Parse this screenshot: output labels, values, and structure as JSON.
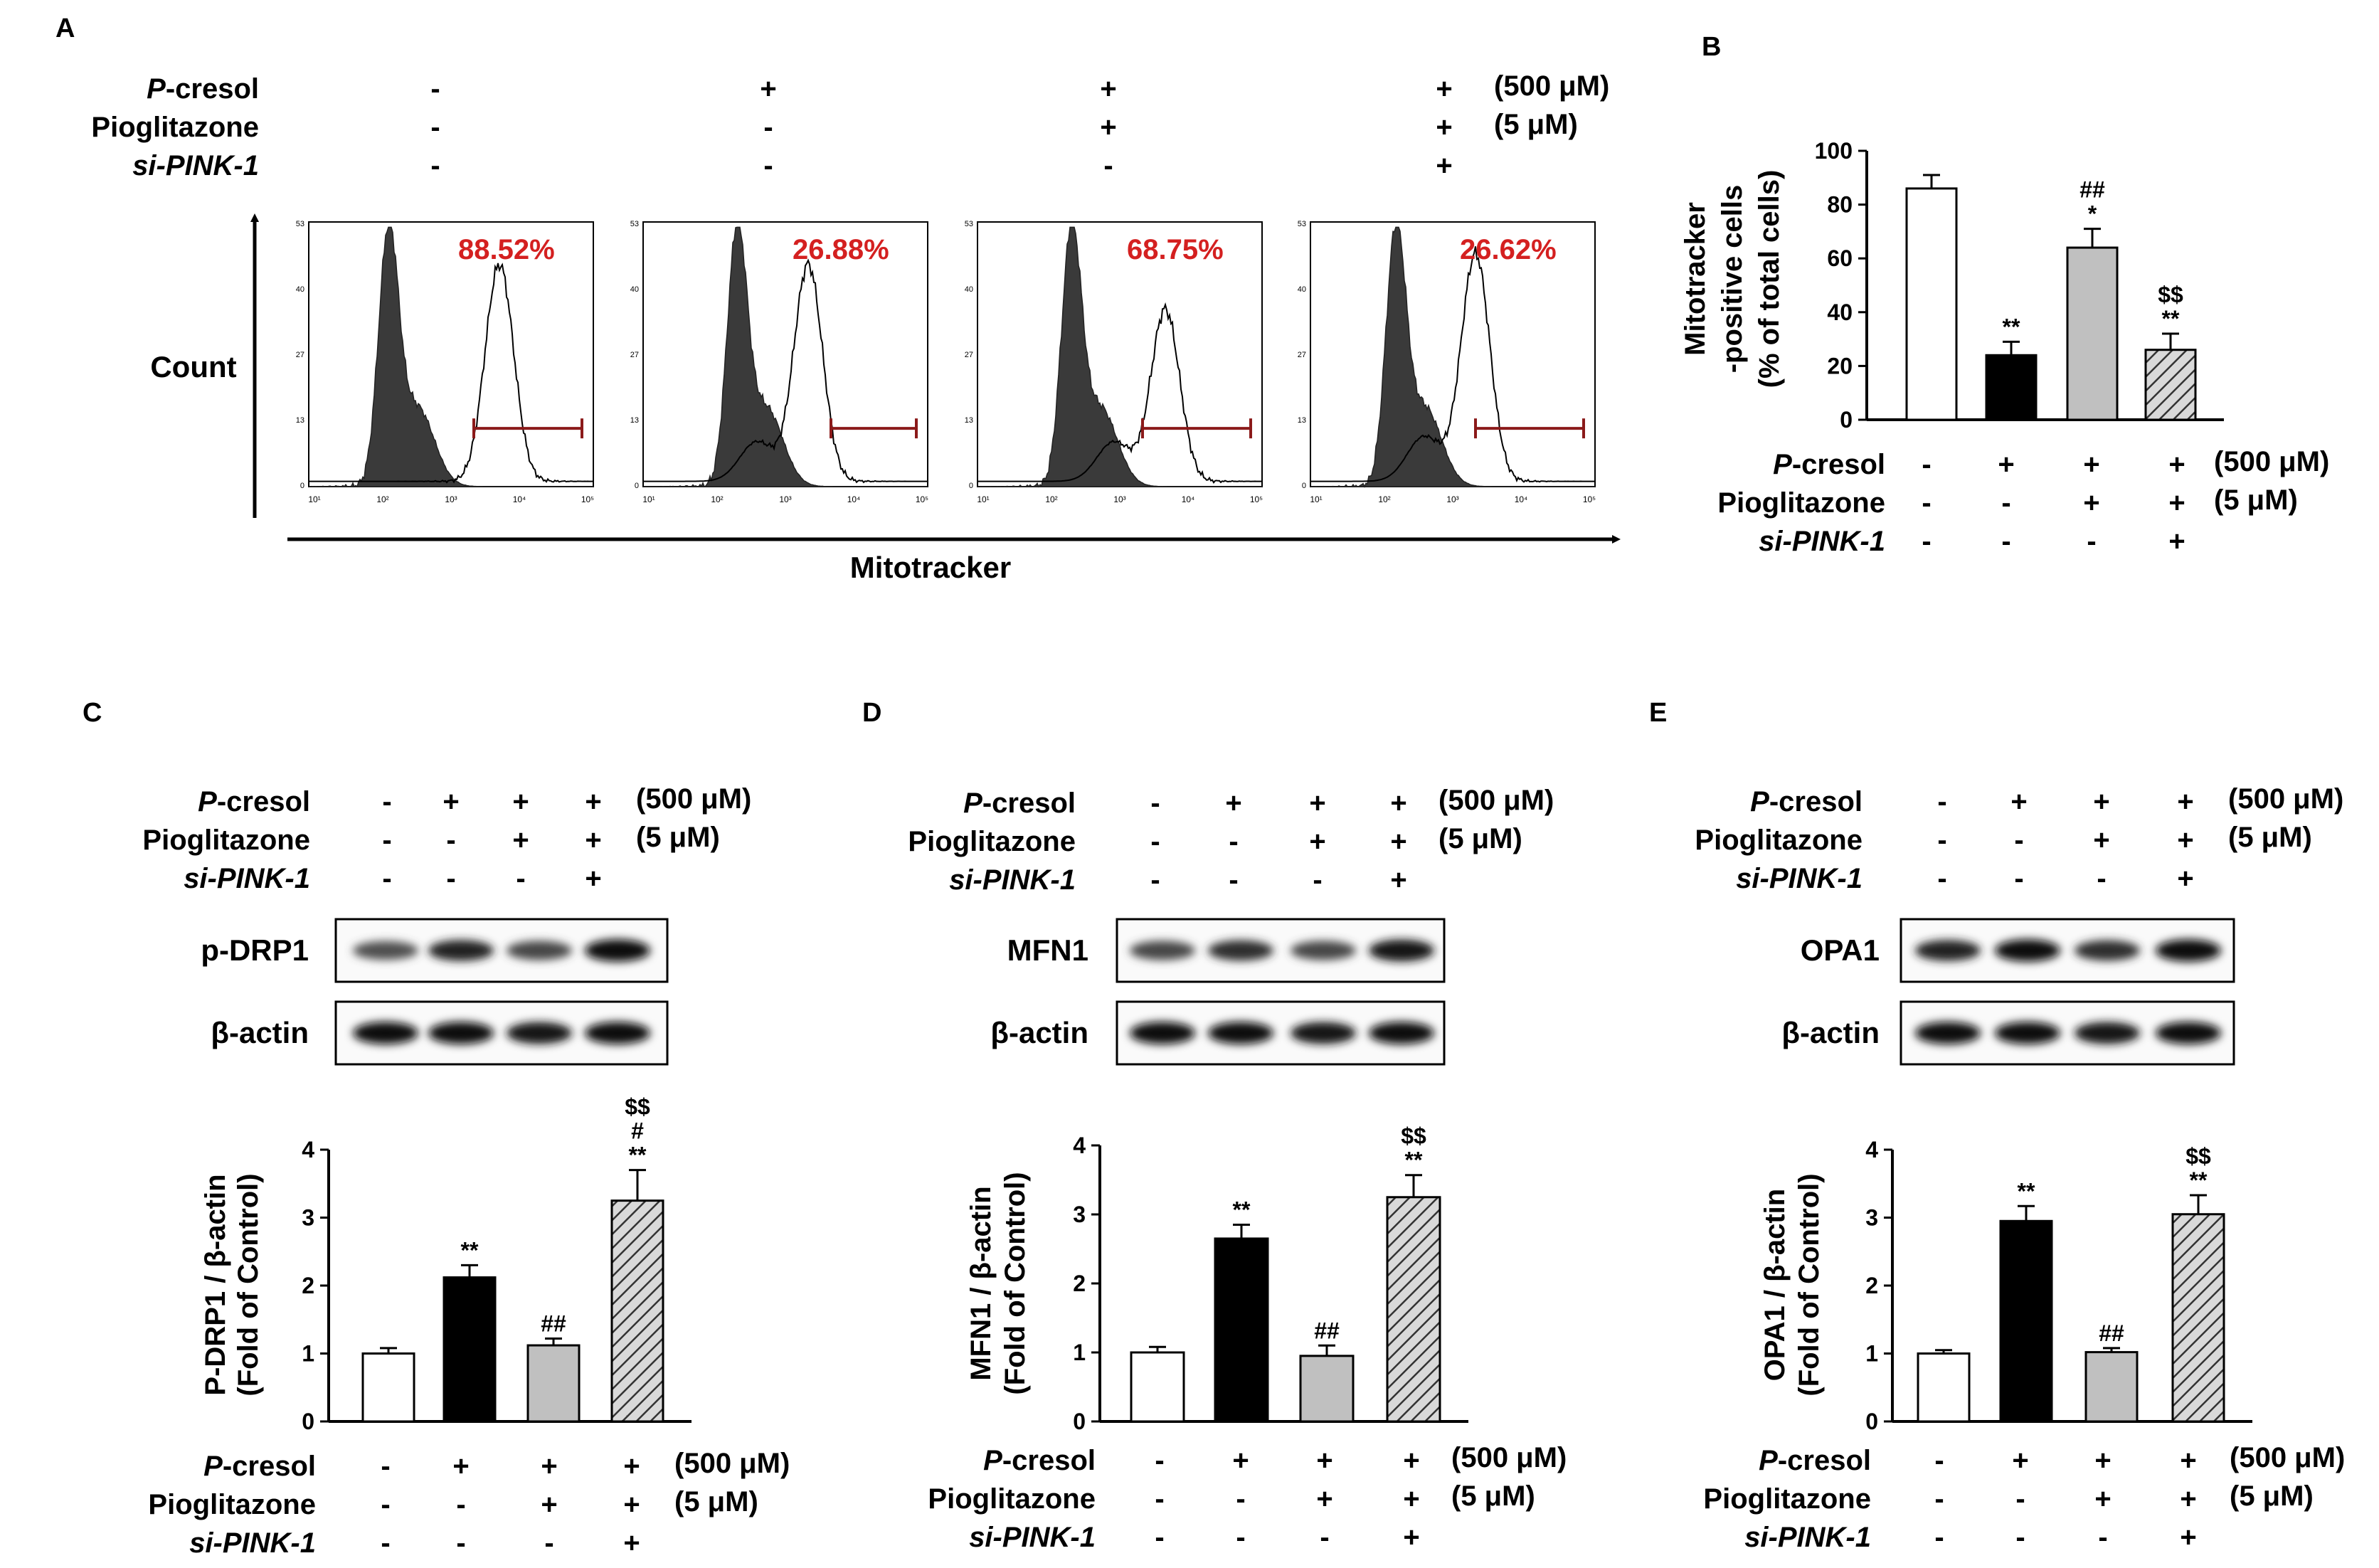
{
  "panel_letters": [
    "A",
    "B",
    "C",
    "D",
    "E"
  ],
  "conditions": {
    "rows": [
      {
        "label": "P-cresol",
        "italic_prefix": "P",
        "rest": "-cresol",
        "unit": "(500 μM)",
        "signs": [
          "-",
          "+",
          "+",
          "+"
        ]
      },
      {
        "label": "Pioglitazone",
        "unit": "(5 μM)",
        "signs": [
          "-",
          "-",
          "+",
          "+"
        ]
      },
      {
        "label": "si-PINK-1",
        "unit": "",
        "signs": [
          "-",
          "-",
          "-",
          "+"
        ]
      }
    ]
  },
  "flow": {
    "y_axis_label": "Count",
    "x_axis_label": "Mitotracker",
    "y_ticks": [
      "53",
      "40",
      "27",
      "13",
      "0"
    ],
    "x_ticks": [
      "10¹",
      "10²",
      "10³",
      "10⁴",
      "10⁵"
    ],
    "percentages": [
      "88.52%",
      "26.88%",
      "68.75%",
      "26.62%"
    ],
    "percent_color": "#d42020",
    "gate_color": "#8b1a1a"
  },
  "blots": [
    {
      "target": "p-DRP1",
      "loading": "β-actin",
      "band_intensity": [
        0.55,
        0.8,
        0.6,
        0.95
      ]
    },
    {
      "target": "MFN1",
      "loading": "β-actin",
      "band_intensity": [
        0.6,
        0.75,
        0.6,
        0.9
      ]
    },
    {
      "target": "OPA1",
      "loading": "β-actin",
      "band_intensity": [
        0.8,
        0.95,
        0.75,
        0.95
      ]
    }
  ],
  "chart_data": [
    {
      "type": "bar",
      "panel": "B",
      "ylabel": "Mitotracker -positive cells (% of total cells)",
      "ylabel_lines": [
        "Mitotracker",
        "-positive cells",
        "(% of total cells)"
      ],
      "ylim": [
        0,
        100
      ],
      "yticks": [
        "0",
        "20",
        "40",
        "60",
        "80",
        "100"
      ],
      "values": [
        86,
        24,
        64,
        26
      ],
      "errors": [
        5,
        5,
        7,
        6
      ],
      "annotations": [
        [],
        [
          "**"
        ],
        [
          "*",
          "##"
        ],
        [
          "**",
          "$$"
        ]
      ]
    },
    {
      "type": "bar",
      "panel": "C",
      "ylabel": "P-DRP1 / β-actin (Fold of Control)",
      "ylabel_lines": [
        "P-DRP1 / β-actin",
        "(Fold of Control)"
      ],
      "ylim": [
        0,
        4
      ],
      "yticks": [
        "0",
        "1",
        "2",
        "3",
        "4"
      ],
      "values": [
        1.0,
        2.12,
        1.12,
        3.25
      ],
      "errors": [
        0.08,
        0.18,
        0.1,
        0.45
      ],
      "annotations": [
        [],
        [
          "**"
        ],
        [
          "##"
        ],
        [
          "**",
          "#",
          "$$"
        ]
      ]
    },
    {
      "type": "bar",
      "panel": "D",
      "ylabel": "MFN1 / β-actin (Fold of Control)",
      "ylabel_lines": [
        "MFN1 / β-actin",
        "(Fold of Control)"
      ],
      "ylim": [
        0,
        4
      ],
      "yticks": [
        "0",
        "1",
        "2",
        "3",
        "4"
      ],
      "values": [
        1.0,
        2.65,
        0.95,
        3.25
      ],
      "errors": [
        0.08,
        0.2,
        0.15,
        0.32
      ],
      "annotations": [
        [],
        [
          "**"
        ],
        [
          "##"
        ],
        [
          "**",
          "$$"
        ]
      ]
    },
    {
      "type": "bar",
      "panel": "E",
      "ylabel": "OPA1 / β-actin (Fold of Control)",
      "ylabel_lines": [
        "OPA1 / β-actin",
        "(Fold of Control)"
      ],
      "ylim": [
        0,
        4
      ],
      "yticks": [
        "0",
        "1",
        "2",
        "3",
        "4"
      ],
      "values": [
        1.0,
        2.95,
        1.02,
        3.05
      ],
      "errors": [
        0.05,
        0.22,
        0.06,
        0.28
      ],
      "annotations": [
        [],
        [
          "**"
        ],
        [
          "##"
        ],
        [
          "**",
          "$$"
        ]
      ]
    }
  ],
  "bar_styles": [
    {
      "fill": "#ffffff"
    },
    {
      "fill": "#000000"
    },
    {
      "fill": "#c0c0c0"
    },
    {
      "fill": "url(#hatch)"
    }
  ]
}
